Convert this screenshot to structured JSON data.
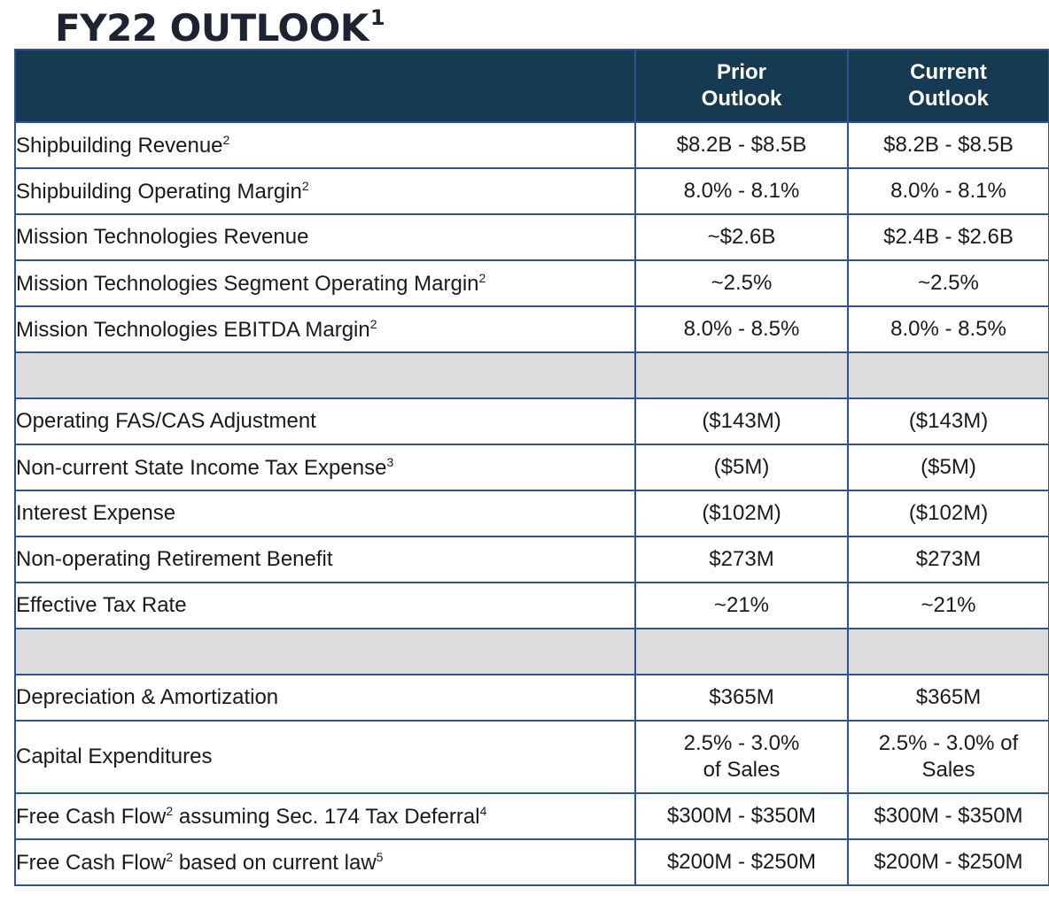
{
  "title": {
    "text": "FY22 OUTLOOK",
    "sup": "1"
  },
  "headers": {
    "label": "",
    "prior": "Prior\nOutlook",
    "current": "Current\nOutlook"
  },
  "rows": [
    {
      "type": "data",
      "label": "Shipbuilding Revenue",
      "sup": "2",
      "suffix": "",
      "sup2": "",
      "prior": "$8.2B - $8.5B",
      "current": "$8.2B - $8.5B"
    },
    {
      "type": "data",
      "label": "Shipbuilding Operating Margin",
      "sup": "2",
      "suffix": "",
      "sup2": "",
      "prior": "8.0% - 8.1%",
      "current": "8.0% - 8.1%"
    },
    {
      "type": "data",
      "label": "Mission Technologies Revenue",
      "sup": "",
      "suffix": "",
      "sup2": "",
      "prior": "~$2.6B",
      "current": "$2.4B - $2.6B"
    },
    {
      "type": "data",
      "label": "Mission Technologies Segment Operating Margin",
      "sup": "2",
      "suffix": "",
      "sup2": "",
      "prior": "~2.5%",
      "current": "~2.5%"
    },
    {
      "type": "data",
      "label": "Mission Technologies EBITDA Margin",
      "sup": "2",
      "suffix": "",
      "sup2": "",
      "prior": "8.0% - 8.5%",
      "current": "8.0% - 8.5%"
    },
    {
      "type": "spacer"
    },
    {
      "type": "data",
      "label": "Operating FAS/CAS Adjustment",
      "sup": "",
      "suffix": "",
      "sup2": "",
      "prior": "($143M)",
      "current": "($143M)"
    },
    {
      "type": "data",
      "label": "Non-current State Income Tax Expense",
      "sup": "3",
      "suffix": "",
      "sup2": "",
      "prior": "($5M)",
      "current": "($5M)"
    },
    {
      "type": "data",
      "label": "Interest Expense",
      "sup": "",
      "suffix": "",
      "sup2": "",
      "prior": "($102M)",
      "current": "($102M)"
    },
    {
      "type": "data",
      "label": "Non-operating Retirement Benefit",
      "sup": "",
      "suffix": "",
      "sup2": "",
      "prior": "$273M",
      "current": "$273M"
    },
    {
      "type": "data",
      "label": "Effective Tax Rate",
      "sup": "",
      "suffix": "",
      "sup2": "",
      "prior": "~21%",
      "current": "~21%"
    },
    {
      "type": "spacer"
    },
    {
      "type": "data",
      "label": "Depreciation & Amortization",
      "sup": "",
      "suffix": "",
      "sup2": "",
      "prior": "$365M",
      "current": "$365M"
    },
    {
      "type": "data",
      "tall": true,
      "label": "Capital Expenditures",
      "sup": "",
      "suffix": "",
      "sup2": "",
      "prior": "2.5% - 3.0%\nof Sales",
      "current": "2.5% - 3.0% of\nSales"
    },
    {
      "type": "data",
      "label": "Free Cash Flow",
      "sup": "2",
      "suffix": " assuming Sec. 174 Tax Deferral",
      "sup2": "4",
      "prior": "$300M - $350M",
      "current": "$300M - $350M"
    },
    {
      "type": "data",
      "label": "Free Cash Flow",
      "sup": "2",
      "suffix": " based on current law",
      "sup2": "5",
      "prior": "$200M - $250M",
      "current": "$200M - $250M"
    }
  ]
}
